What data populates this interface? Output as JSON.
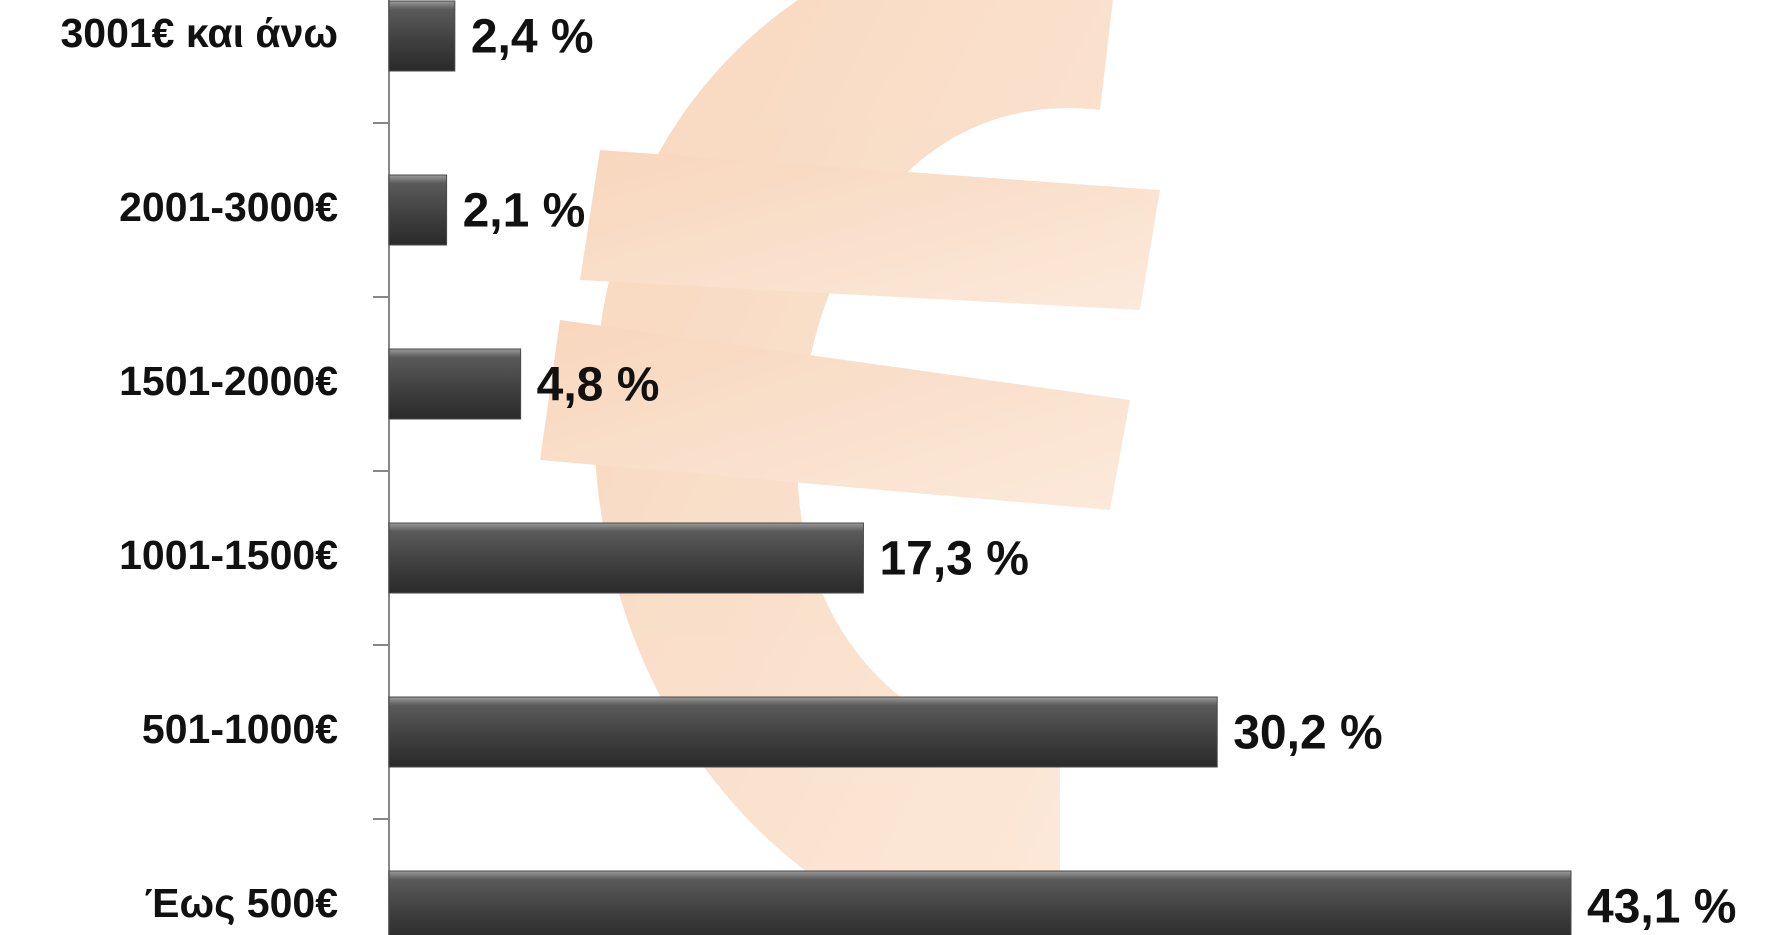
{
  "chart_data": {
    "type": "bar",
    "orientation": "horizontal",
    "categories": [
      "3001€ και άνω",
      "2001-3000€",
      "1501-2000€",
      "1001-1500€",
      "501-1000€",
      "Έως 500€"
    ],
    "values": [
      2.4,
      2.1,
      4.8,
      17.3,
      30.2,
      43.1
    ],
    "value_labels": [
      "2,4 %",
      "2,1 %",
      "4,8 %",
      "17,3 %",
      "30,2 %",
      "43,1 %"
    ],
    "color": "#4a4a4a"
  }
}
